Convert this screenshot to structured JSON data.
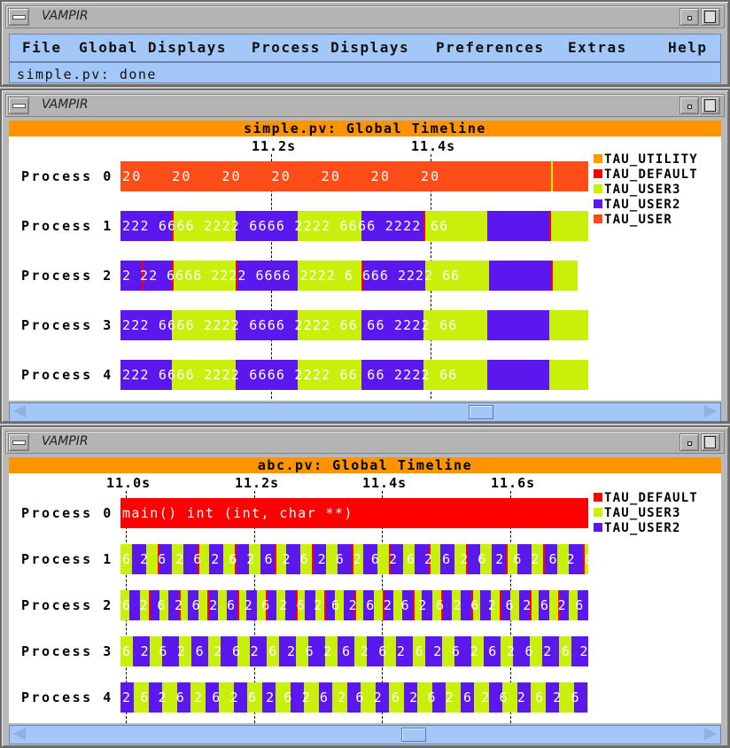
{
  "colors": {
    "utility": "#ff9900",
    "default": "#ff0000",
    "user": "#ff4d1a",
    "user2": "#5a17ee",
    "user3": "#c8f00a",
    "menubar": "#a3c7f6",
    "header": "#ff9400"
  },
  "main_window": {
    "title": "VAMPIR",
    "menu": [
      {
        "label": "File",
        "id": "file"
      },
      {
        "label": "Global Displays",
        "id": "global-displays"
      },
      {
        "label": "Process Displays",
        "id": "process-displays"
      },
      {
        "label": "Preferences",
        "id": "preferences"
      },
      {
        "label": "Extras",
        "id": "extras"
      },
      {
        "label": "Help",
        "id": "help"
      }
    ],
    "status": "simple.pv: done"
  },
  "timeline1": {
    "window_title": "VAMPIR",
    "header": "simple.pv: Global Timeline",
    "ticks": [
      "11.2s",
      "11.4s"
    ],
    "legend": [
      {
        "label": "TAU_UTILITY",
        "color": "#ff9900"
      },
      {
        "label": "TAU_DEFAULT",
        "color": "#ff0000"
      },
      {
        "label": "TAU_USER3",
        "color": "#c8f00a"
      },
      {
        "label": "TAU_USER2",
        "color": "#5a17ee"
      },
      {
        "label": "TAU_USER",
        "color": "#ff4d1a"
      }
    ],
    "processes": [
      {
        "label": "Process 0",
        "lane_text": "20   20   20   20   20   20   20"
      },
      {
        "label": "Process 1",
        "lane_text": "222 6666 2222 6666 2222 6666 2222 66"
      },
      {
        "label": "Process 2",
        "lane_text": "2 22 6666 2222 6666 2222 6 666 2222 66"
      },
      {
        "label": "Process 3",
        "lane_text": "222 6666 2222 6666 2222 66 66 2222 66"
      },
      {
        "label": "Process 4",
        "lane_text": "222 6666 2222 6666 2222 66 66 2222 66"
      }
    ]
  },
  "timeline2": {
    "window_title": "VAMPIR",
    "header": "abc.pv: Global Timeline",
    "ticks": [
      "11.0s",
      "11.2s",
      "11.4s",
      "11.6s"
    ],
    "legend": [
      {
        "label": "TAU_DEFAULT",
        "color": "#ff0000"
      },
      {
        "label": "TAU_USER3",
        "color": "#c8f00a"
      },
      {
        "label": "TAU_USER2",
        "color": "#5a17ee"
      }
    ],
    "processes": [
      {
        "label": "Process 0",
        "lane_text": "main() int (int, char **)"
      },
      {
        "label": "Process 1",
        "lane_text": "6 2 6 2 6 2 6 2 6 2 6 2 6 2 6 2 6 2 6 2 6 2 6 2 6 2 6 2 6"
      },
      {
        "label": "Process 2",
        "lane_text": "6 2 6 2 6 2 6 2 6 2 6 2 6 2 6 2 6 2 6 2 6 2 6 2 6 2 6 2 3 6"
      },
      {
        "label": "Process 3",
        "lane_text": "6 2 6 2 6 2 6 2 6 2 6 2 6 2 6 2 6 2 6 2 6 2 6 2 6 2 6"
      },
      {
        "label": "Process 4",
        "lane_text": "2 6 2 6 2 6 2 6 2 6 2 6 2 6 2 6 2 6 2 6 2 6 2 6 2 6 2 6 2"
      }
    ]
  }
}
